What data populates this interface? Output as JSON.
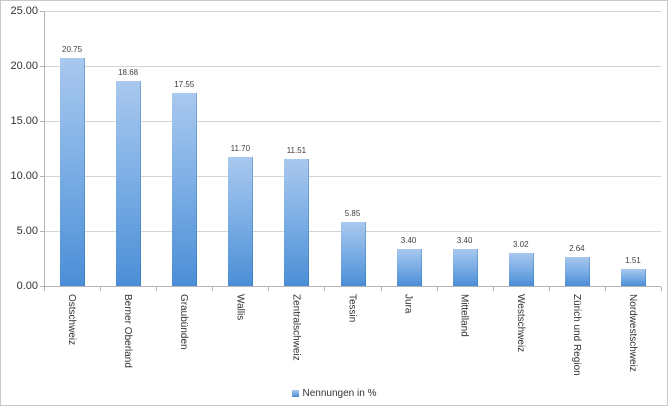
{
  "chart_data": {
    "type": "bar",
    "title": "",
    "categories": [
      "Ostschweiz",
      "Berner Oberland",
      "Graubünden",
      "Wallis",
      "Zentralschweiz",
      "Tessin",
      "Jura",
      "Mittelland",
      "Westschweiz",
      "Zürich und Region",
      "Nordwestschweiz"
    ],
    "values": [
      20.75,
      18.68,
      17.55,
      11.7,
      11.51,
      5.85,
      3.4,
      3.4,
      3.02,
      2.64,
      1.51
    ],
    "data_labels": [
      "20.75",
      "18.68",
      "17.55",
      "11.70",
      "11.51",
      "5.85",
      "3.40",
      "3.40",
      "3.02",
      "2.64",
      "1.51"
    ],
    "series_name": "Nennungen in %",
    "xlabel": "",
    "ylabel": "",
    "ylim": [
      0,
      25
    ],
    "yticks": [
      {
        "value": 25,
        "label": "25.00"
      },
      {
        "value": 20,
        "label": "20.00"
      },
      {
        "value": 15,
        "label": "15.00"
      },
      {
        "value": 10,
        "label": "10.00"
      },
      {
        "value": 5,
        "label": "5.00"
      },
      {
        "value": 0,
        "label": "0.00"
      }
    ],
    "grid": true,
    "legend": {
      "label": "Nennungen in %",
      "position": "bottom-center"
    },
    "colors": {
      "bar_gradient_top": "#a9c8ee",
      "bar_gradient_bottom": "#4b8ed6",
      "gridline": "#d4d4d4",
      "axis": "#b3b3b3",
      "text": "#333333",
      "frame": "#c9c9c9",
      "background": "#ffffff"
    }
  }
}
